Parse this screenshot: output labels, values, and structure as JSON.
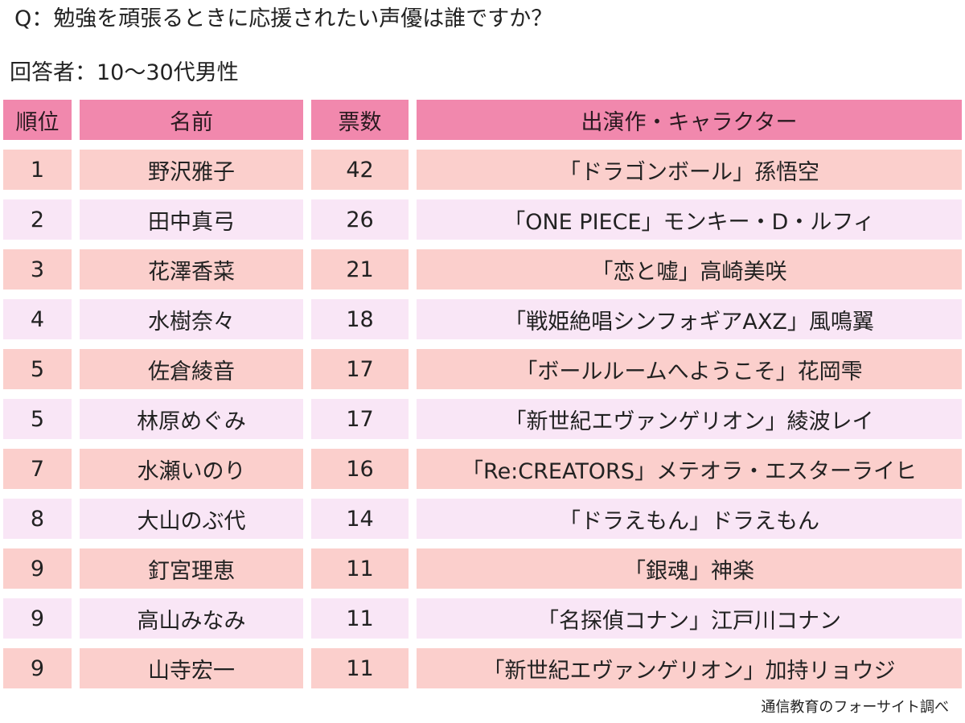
{
  "question": "Q：勉強を頑張るときに応援されたい声優は誰ですか？",
  "respondents": "回答者：10〜30代男性",
  "table": {
    "headers": {
      "rank": "順位",
      "name": "名前",
      "votes": "票数",
      "work": "出演作・キャラクター"
    },
    "rows": [
      {
        "rank": "1",
        "name": "野沢雅子",
        "votes": "42",
        "work": "「ドラゴンボール」孫悟空"
      },
      {
        "rank": "2",
        "name": "田中真弓",
        "votes": "26",
        "work": "「ONE PIECE」モンキー・D・ルフィ"
      },
      {
        "rank": "3",
        "name": "花澤香菜",
        "votes": "21",
        "work": "「恋と嘘」高崎美咲"
      },
      {
        "rank": "4",
        "name": "水樹奈々",
        "votes": "18",
        "work": "「戦姫絶唱シンフォギアAXZ」風鳴翼"
      },
      {
        "rank": "5",
        "name": "佐倉綾音",
        "votes": "17",
        "work": "「ボールルームへようこそ」花岡雫"
      },
      {
        "rank": "5",
        "name": "林原めぐみ",
        "votes": "17",
        "work": "「新世紀エヴァンゲリオン」綾波レイ"
      },
      {
        "rank": "7",
        "name": "水瀬いのり",
        "votes": "16",
        "work": "「Re:CREATORS」メテオラ・エスターライヒ"
      },
      {
        "rank": "8",
        "name": "大山のぶ代",
        "votes": "14",
        "work": "「ドラえもん」ドラえもん"
      },
      {
        "rank": "9",
        "name": "釘宮理恵",
        "votes": "11",
        "work": "「銀魂」神楽"
      },
      {
        "rank": "9",
        "name": "高山みなみ",
        "votes": "11",
        "work": "「名探偵コナン」江戸川コナン"
      },
      {
        "rank": "9",
        "name": "山寺宏一",
        "votes": "11",
        "work": "「新世紀エヴァンゲリオン」加持リョウジ"
      }
    ]
  },
  "source": "通信教育のフォーサイト調べ",
  "colors": {
    "header_bg": "#f188ad",
    "odd_row_bg": "#fbcfcc",
    "even_row_bg": "#f9e6f6"
  }
}
